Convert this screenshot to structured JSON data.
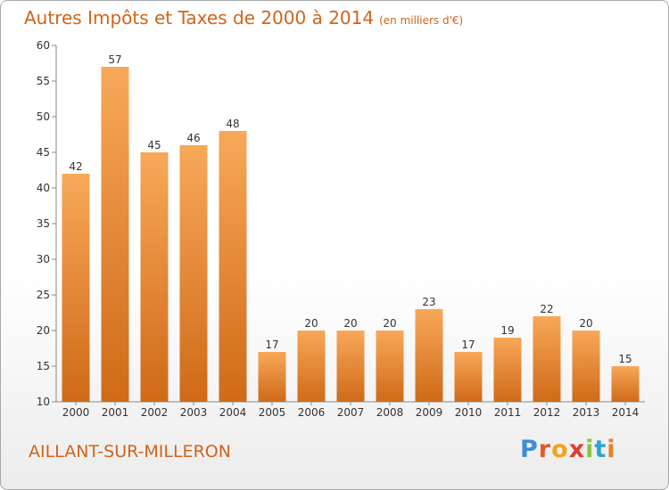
{
  "header": {
    "title": "Autres Impôts et Taxes de 2000 à 2014",
    "subtitle": "(en milliers d'€)"
  },
  "footer": {
    "commune": "AILLANT-SUR-MILLERON",
    "logo_letters": [
      "P",
      "r",
      "o",
      "x",
      "i",
      "t",
      "i"
    ],
    "logo_colors": [
      "#3b8fd3",
      "#e05a2a",
      "#f3a21c",
      "#e53a2e",
      "#8cc63e",
      "#2ba3d6",
      "#ef7d22"
    ]
  },
  "colors": {
    "bar_light": "#f8a859",
    "bar_dark": "#cf6a18",
    "accent": "#d0641a"
  },
  "chart_data": {
    "type": "bar",
    "title": "Autres Impôts et Taxes de 2000 à 2014",
    "subtitle": "(en milliers d'€)",
    "categories": [
      "2000",
      "2001",
      "2002",
      "2003",
      "2004",
      "2005",
      "2006",
      "2007",
      "2008",
      "2009",
      "2010",
      "2011",
      "2012",
      "2013",
      "2014"
    ],
    "values": [
      42,
      57,
      45,
      46,
      48,
      17,
      20,
      20,
      20,
      23,
      17,
      19,
      22,
      20,
      15
    ],
    "xlabel": "",
    "ylabel": "",
    "ylim": [
      10,
      60
    ],
    "yticks": [
      10,
      15,
      20,
      25,
      30,
      35,
      40,
      45,
      50,
      55,
      60
    ],
    "grid": false,
    "legend": "none",
    "data_labels": true
  }
}
